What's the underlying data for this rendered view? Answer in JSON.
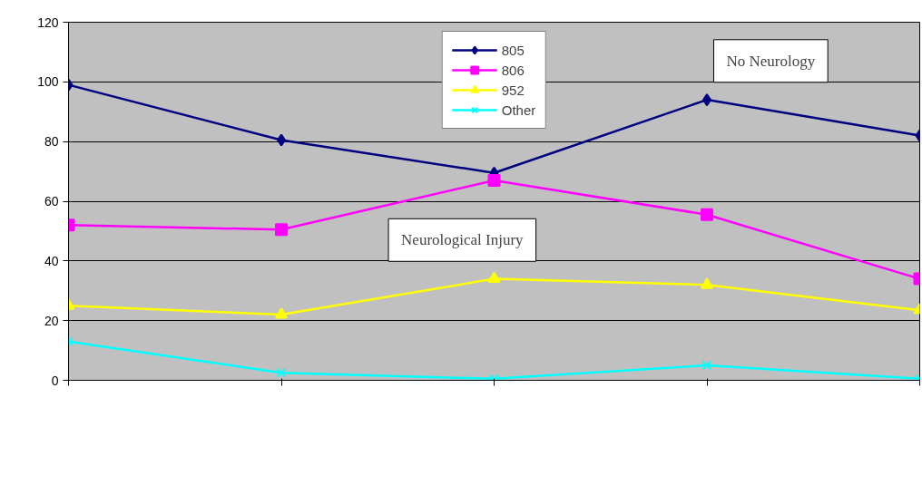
{
  "chart_data": {
    "type": "line",
    "categories": [
      null,
      null,
      null,
      null,
      null
    ],
    "series": [
      {
        "name": "805",
        "color": "#000080",
        "marker": "diamond",
        "values": [
          99,
          80.5,
          69.5,
          94,
          82
        ]
      },
      {
        "name": "806",
        "color": "#ff00ff",
        "marker": "square",
        "values": [
          52,
          50.5,
          67,
          55.5,
          34
        ]
      },
      {
        "name": "952",
        "color": "#ffff00",
        "marker": "triangle",
        "values": [
          25,
          22,
          34,
          32,
          23.5
        ]
      },
      {
        "name": "Other",
        "color": "#00ffff",
        "marker": "cross",
        "values": [
          13,
          2.5,
          0.5,
          5,
          0.5
        ]
      }
    ],
    "ylim": [
      0,
      120
    ],
    "yticks": [
      0,
      20,
      40,
      60,
      80,
      100,
      120
    ],
    "grid": "y",
    "legend": "top",
    "tick_labels": "y",
    "annotations": [
      "No Neurology",
      "Neurological Injury"
    ]
  }
}
